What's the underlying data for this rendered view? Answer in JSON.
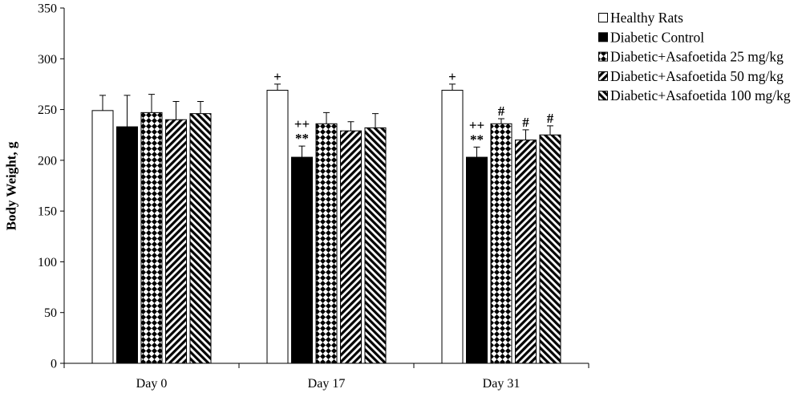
{
  "chart_data": {
    "type": "bar",
    "ylabel": "Body Weight, g",
    "categories": [
      "Day 0",
      "Day 17",
      "Day 31"
    ],
    "ylim": [
      0,
      350
    ],
    "yticks": [
      0,
      50,
      100,
      150,
      200,
      250,
      300,
      350
    ],
    "grid": false,
    "legend_position": "top-right",
    "series": [
      {
        "name": "Healthy Rats",
        "color": "#ffffff",
        "pattern": "solid",
        "values": [
          249,
          269,
          269
        ],
        "errors": [
          15,
          6,
          6
        ],
        "annotations": [
          [],
          [
            "+"
          ],
          [
            "+"
          ]
        ]
      },
      {
        "name": "Diabetic Control",
        "color": "#000000",
        "pattern": "solid",
        "values": [
          233,
          203,
          203
        ],
        "errors": [
          31,
          11,
          10
        ],
        "annotations": [
          [],
          [
            "++",
            "**"
          ],
          [
            "++",
            "**"
          ]
        ]
      },
      {
        "name": "Diabetic+Asafoetida 25 mg/kg",
        "color": "#000000",
        "pattern": "diamond-checker",
        "values": [
          247,
          236,
          236
        ],
        "errors": [
          18,
          11,
          5
        ],
        "annotations": [
          [],
          [],
          [
            "#"
          ]
        ]
      },
      {
        "name": "Diabetic+Asafoetida 50 mg/kg",
        "color": "#000000",
        "pattern": "forward-diagonal-stripes",
        "values": [
          240,
          229,
          220
        ],
        "errors": [
          18,
          9,
          10
        ],
        "annotations": [
          [],
          [],
          [
            "#"
          ]
        ]
      },
      {
        "name": "Diabetic+Asafoetida 100 mg/kg",
        "color": "#000000",
        "pattern": "backward-diagonal-stripes",
        "values": [
          246,
          232,
          225
        ],
        "errors": [
          12,
          14,
          9
        ],
        "annotations": [
          [],
          [],
          [
            "#"
          ]
        ]
      }
    ]
  }
}
